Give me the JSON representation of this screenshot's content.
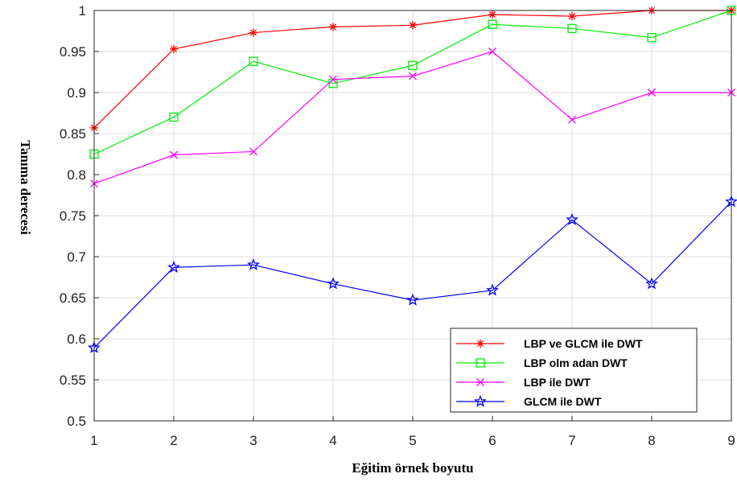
{
  "chart_data": {
    "type": "line",
    "xlabel": "Eğitim örnek boyutu",
    "ylabel": "Tanıma derecesi",
    "x": [
      1,
      2,
      3,
      4,
      5,
      6,
      7,
      8,
      9
    ],
    "xlim": [
      1,
      9
    ],
    "ylim": [
      0.5,
      1
    ],
    "xticks": [
      "1",
      "2",
      "3",
      "4",
      "5",
      "6",
      "7",
      "8",
      "9"
    ],
    "yticks": [
      "0.5",
      "0.55",
      "0.6",
      "0.65",
      "0.7",
      "0.75",
      "0.8",
      "0.85",
      "0.9",
      "0.95",
      "1"
    ],
    "grid": true,
    "legend_position": "bottom-right",
    "series": [
      {
        "name": "LBP ve GLCM ile DWT",
        "color": "#ff0000",
        "marker": "asterisk",
        "values": [
          0.857,
          0.953,
          0.973,
          0.98,
          0.982,
          0.995,
          0.993,
          1.0,
          1.0
        ]
      },
      {
        "name": "LBP olm adan DWT",
        "color": "#00ee00",
        "marker": "square",
        "values": [
          0.825,
          0.87,
          0.938,
          0.911,
          0.933,
          0.983,
          0.978,
          0.967,
          1.0
        ]
      },
      {
        "name": "LBP ile DWT",
        "color": "#ff00ff",
        "marker": "x",
        "values": [
          0.789,
          0.824,
          0.828,
          0.916,
          0.92,
          0.95,
          0.867,
          0.9,
          0.9
        ]
      },
      {
        "name": "GLCM ile DWT",
        "color": "#0000ff",
        "marker": "star",
        "values": [
          0.589,
          0.687,
          0.69,
          0.667,
          0.647,
          0.659,
          0.745,
          0.667,
          0.767
        ]
      }
    ]
  }
}
